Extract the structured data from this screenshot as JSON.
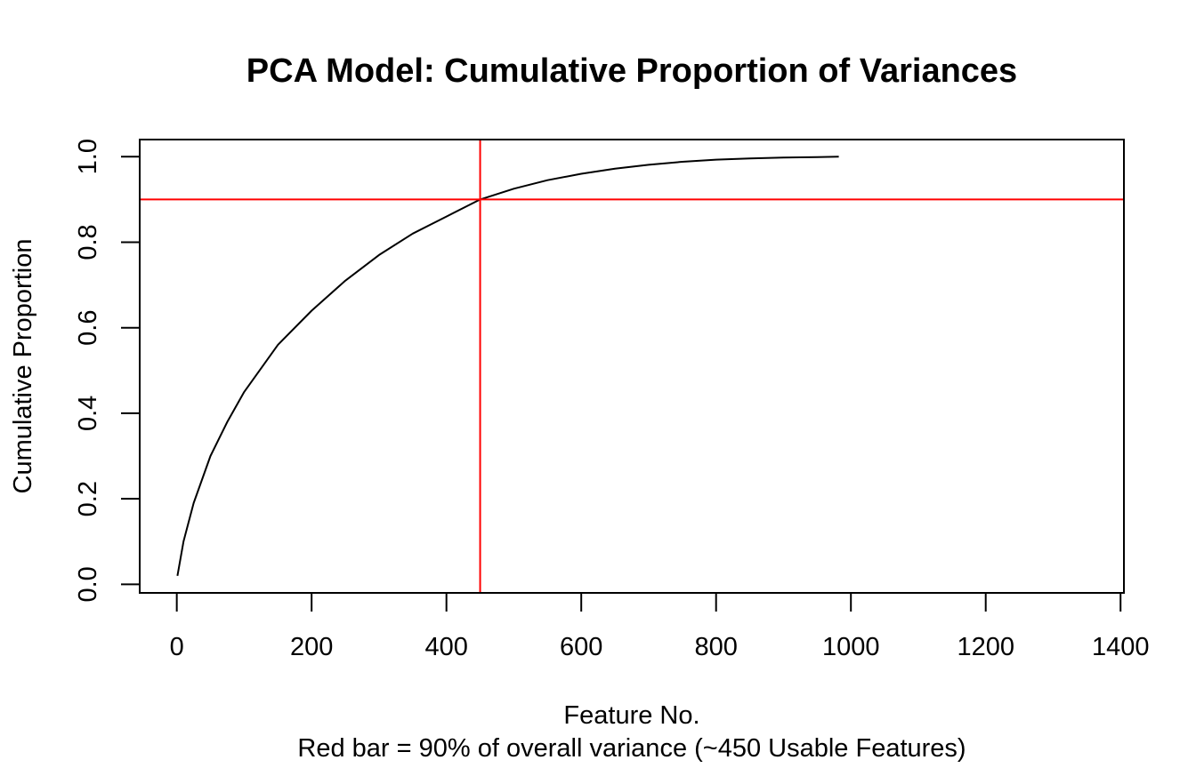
{
  "chart_data": {
    "type": "line",
    "title": "PCA Model: Cumulative Proportion of Variances",
    "xlabel": "Feature No.",
    "subtitle": "Red bar = 90% of overall variance (~450 Usable Features)",
    "ylabel": "Cumulative Proportion",
    "xlim": [
      -55,
      1405
    ],
    "ylim": [
      -0.02,
      1.04
    ],
    "x_ticks": [
      0,
      200,
      400,
      600,
      800,
      1000,
      1200,
      1400
    ],
    "y_ticks": [
      0.0,
      0.2,
      0.4,
      0.6,
      0.8,
      1.0
    ],
    "x_tick_labels": [
      "0",
      "200",
      "400",
      "600",
      "800",
      "1000",
      "1200",
      "1400"
    ],
    "y_tick_labels": [
      "0.0",
      "0.2",
      "0.4",
      "0.6",
      "0.8",
      "1.0"
    ],
    "grid": false,
    "series": [
      {
        "x": [
          1,
          10,
          25,
          50,
          75,
          100,
          150,
          200,
          250,
          300,
          350,
          400,
          450,
          500,
          550,
          600,
          650,
          700,
          750,
          800,
          850,
          900,
          950,
          982
        ],
        "y": [
          0.02,
          0.1,
          0.19,
          0.3,
          0.38,
          0.45,
          0.56,
          0.64,
          0.71,
          0.77,
          0.82,
          0.86,
          0.9,
          0.925,
          0.945,
          0.96,
          0.972,
          0.981,
          0.988,
          0.993,
          0.996,
          0.998,
          0.999,
          1.0
        ],
        "color": "#000000"
      }
    ],
    "reference_lines": [
      {
        "orientation": "horizontal",
        "value": 0.9,
        "color": "#ff0000"
      },
      {
        "orientation": "vertical",
        "value": 450,
        "color": "#ff0000"
      }
    ]
  }
}
